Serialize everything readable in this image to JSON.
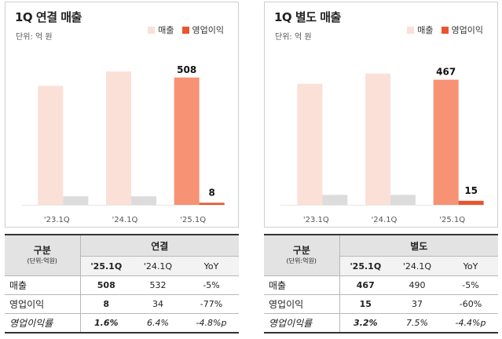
{
  "legend": {
    "revenue": "매출",
    "profit": "영업이익"
  },
  "colors": {
    "revenue_past": "#fbe0d8",
    "revenue_current": "#f79274",
    "profit_past": "#dcdcdc",
    "profit_current": "#e8552e"
  },
  "panels": [
    {
      "title": "1Q 연결 매출",
      "unit": "단위: 억 원"
    },
    {
      "title": "1Q 별도 매출",
      "unit": "단위: 억 원"
    }
  ],
  "chart_data": [
    {
      "type": "bar",
      "title": "1Q 연결 매출",
      "categories": [
        "'23.1Q",
        "'24.1Q",
        "'25.1Q"
      ],
      "series": [
        {
          "name": "매출",
          "values": [
            475,
            532,
            508
          ]
        },
        {
          "name": "영업이익",
          "values": [
            34,
            34,
            8
          ]
        }
      ],
      "data_labels": [
        null,
        null,
        "508"
      ],
      "profit_labels": [
        null,
        null,
        "8"
      ],
      "ylim": [
        0,
        620
      ]
    },
    {
      "type": "bar",
      "title": "1Q 별도 매출",
      "categories": [
        "'23.1Q",
        "'24.1Q",
        "'25.1Q"
      ],
      "series": [
        {
          "name": "매출",
          "values": [
            452,
            490,
            467
          ]
        },
        {
          "name": "영업이익",
          "values": [
            37,
            37,
            15
          ]
        }
      ],
      "data_labels": [
        null,
        null,
        "467"
      ],
      "profit_labels": [
        null,
        null,
        "15"
      ],
      "ylim": [
        0,
        580
      ]
    }
  ],
  "tables": [
    {
      "gubun": "구분",
      "gubun_unit": "(단위:억원)",
      "group": "연결",
      "cols": [
        "'25.1Q",
        "'24.1Q",
        "YoY"
      ],
      "rows": [
        {
          "label": "매출",
          "cur": "508",
          "prev": "532",
          "yoy": "-5%"
        },
        {
          "label": "영업이익",
          "cur": "8",
          "prev": "34",
          "yoy": "-77%"
        },
        {
          "label": "영업이익률",
          "cur": "1.6%",
          "prev": "6.4%",
          "yoy": "-4.8%p"
        }
      ]
    },
    {
      "gubun": "구분",
      "gubun_unit": "(단위:억원)",
      "group": "별도",
      "cols": [
        "'25.1Q",
        "'24.1Q",
        "YoY"
      ],
      "rows": [
        {
          "label": "매출",
          "cur": "467",
          "prev": "490",
          "yoy": "-5%"
        },
        {
          "label": "영업이익",
          "cur": "15",
          "prev": "37",
          "yoy": "-60%"
        },
        {
          "label": "영업이익률",
          "cur": "3.2%",
          "prev": "7.5%",
          "yoy": "-4.4%p"
        }
      ]
    }
  ]
}
